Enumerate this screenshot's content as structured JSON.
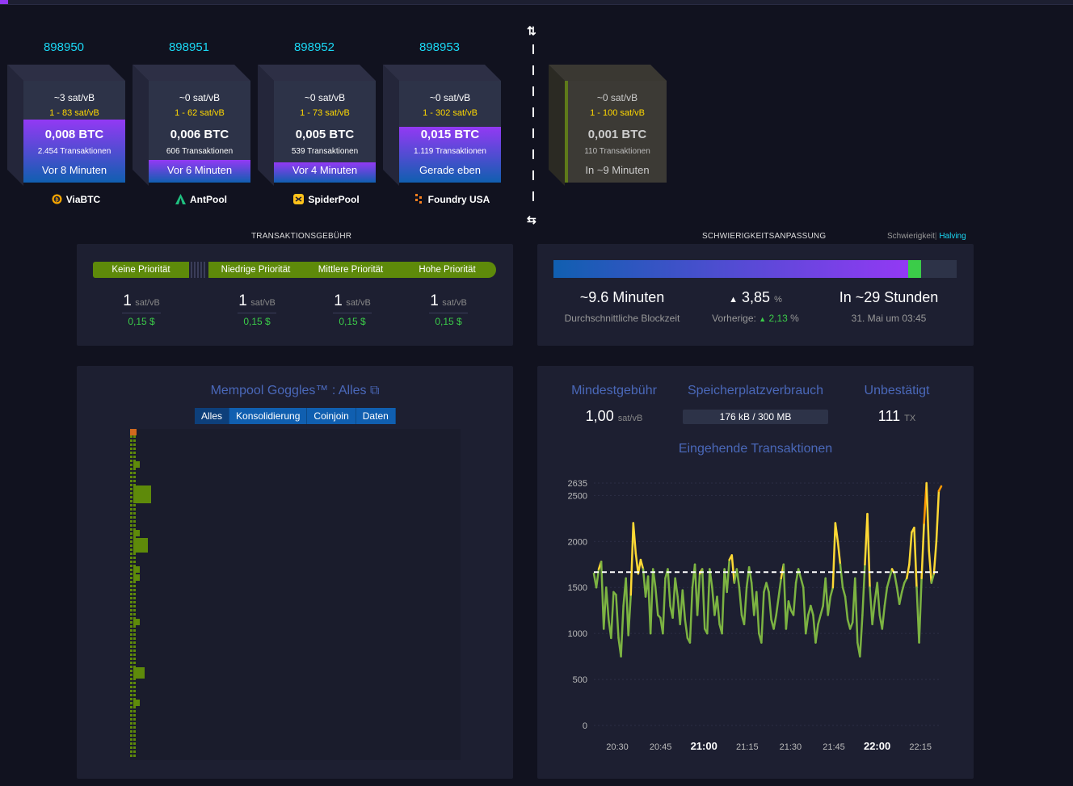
{
  "blocks": [
    {
      "height": "898950",
      "fee": "~3 sat/vB",
      "span": "1 - 83 sat/vB",
      "total": "0,008 BTC",
      "txs": "2.454 Transaktionen",
      "time": "Vor 8 Minuten",
      "fill": 0.62,
      "pool": "ViaBTC",
      "pool_icon": "viabtc-icon"
    },
    {
      "height": "898951",
      "fee": "~0 sat/vB",
      "span": "1 - 62 sat/vB",
      "total": "0,006 BTC",
      "txs": "606 Transaktionen",
      "time": "Vor 6 Minuten",
      "fill": 0.22,
      "pool": "AntPool",
      "pool_icon": "antpool-icon"
    },
    {
      "height": "898952",
      "fee": "~0 sat/vB",
      "span": "1 - 73 sat/vB",
      "total": "0,005 BTC",
      "txs": "539 Transaktionen",
      "time": "Vor 4 Minuten",
      "fill": 0.2,
      "pool": "SpiderPool",
      "pool_icon": "spiderpool-icon"
    },
    {
      "height": "898953",
      "fee": "~0 sat/vB",
      "span": "1 - 302 sat/vB",
      "total": "0,015 BTC",
      "txs": "1.119 Transaktionen",
      "time": "Gerade eben",
      "fill": 0.55,
      "pool": "Foundry USA",
      "pool_icon": "foundry-icon"
    }
  ],
  "mempool_block": {
    "fee": "~0 sat/vB",
    "span": "1 - 100 sat/vB",
    "total": "0,001 BTC",
    "txs": "110 Transaktionen",
    "time": "In ~9 Minuten"
  },
  "fees": {
    "title": "TRANSAKTIONSGEBÜHR",
    "labels": [
      "Keine Priorität",
      "Niedrige Priorität",
      "Mittlere Priorität",
      "Hohe Priorität"
    ],
    "columns": [
      {
        "value": "1",
        "unit": "sat/vB",
        "usd": "0,15 $"
      },
      {
        "value": "1",
        "unit": "sat/vB",
        "usd": "0,15 $"
      },
      {
        "value": "1",
        "unit": "sat/vB",
        "usd": "0,15 $"
      },
      {
        "value": "1",
        "unit": "sat/vB",
        "usd": "0,15 $"
      }
    ]
  },
  "difficulty": {
    "title": "SCHWIERIGKEITSANPASSUNG",
    "link_difficulty": "Schwierigkeit",
    "link_sep": "|",
    "link_halving": "Halving",
    "progress": 0.88,
    "block_time": "~9.6 Minuten",
    "block_time_label": "Durchschnittliche Blockzeit",
    "change": "3,85",
    "change_unit": "%",
    "previous_label": "Vorherige:",
    "previous": "2,13",
    "previous_unit": "%",
    "eta": "In ~29 Stunden",
    "eta_date": "31. Mai um 03:45"
  },
  "goggles": {
    "title": "Mempool Goggles™ : Alles",
    "tabs": [
      "Alles",
      "Konsolidierung",
      "Coinjoin",
      "Daten"
    ]
  },
  "mempool_stats": {
    "min_fee_label": "Mindestgebühr",
    "min_fee": "1,00",
    "min_fee_unit": "sat/vB",
    "usage_label": "Speicherplatzverbrauch",
    "usage": "176 kB / 300 MB",
    "unconfirmed_label": "Unbestätigt",
    "unconfirmed": "111",
    "unconfirmed_unit": "TX",
    "incoming_label": "Eingehende Transaktionen"
  },
  "chart_data": {
    "type": "line",
    "title": "Eingehende Transaktionen",
    "x_ticks": [
      "20:30",
      "20:45",
      "21:00",
      "21:15",
      "21:30",
      "21:45",
      "22:00",
      "22:15"
    ],
    "bold_ticks": [
      "21:00",
      "22:00"
    ],
    "y_ticks": [
      0,
      500,
      1000,
      1500,
      2000,
      2500,
      2635
    ],
    "ylim": [
      0,
      2635
    ],
    "threshold": 1667,
    "colors": {
      "below": "#7cb342",
      "above": "#fdd835",
      "peak": "#ff9800",
      "threshold": "#ffffff"
    },
    "values": [
      1650,
      1500,
      1700,
      1780,
      1050,
      1500,
      1150,
      950,
      1450,
      1420,
      950,
      750,
      1300,
      1600,
      980,
      1420,
      2200,
      1870,
      1650,
      1800,
      1700,
      1400,
      1620,
      1000,
      1700,
      1500,
      1200,
      1170,
      1000,
      1600,
      1700,
      1300,
      1170,
      1600,
      1400,
      1100,
      1470,
      1150,
      950,
      900,
      1500,
      1750,
      1200,
      1650,
      1700,
      1050,
      1000,
      1700,
      1500,
      1200,
      1400,
      1100,
      1000,
      1700,
      1450,
      1800,
      1850,
      1550,
      1700,
      1500,
      1200,
      1100,
      1500,
      1720,
      1550,
      1200,
      1450,
      1000,
      900,
      1450,
      1550,
      1450,
      1150,
      1050,
      1200,
      1400,
      1600,
      1750,
      1050,
      1350,
      1250,
      1200,
      1550,
      1700,
      1600,
      1500,
      1000,
      1200,
      1300,
      1200,
      900,
      1100,
      1200,
      1300,
      1600,
      1200,
      1400,
      1500,
      2200,
      2000,
      1750,
      1500,
      1400,
      1150,
      1050,
      1120,
      1600,
      900,
      750,
      1200,
      1750,
      2300,
      1500,
      1100,
      1350,
      1550,
      1200,
      1050,
      1300,
      1500,
      1600,
      1700,
      1650,
      1500,
      1320,
      1450,
      1550,
      1600,
      1750,
      2100,
      2150,
      1500,
      900,
      1600,
      2200,
      2635,
      1900,
      1550,
      1650,
      2000,
      2550,
      2600
    ]
  }
}
